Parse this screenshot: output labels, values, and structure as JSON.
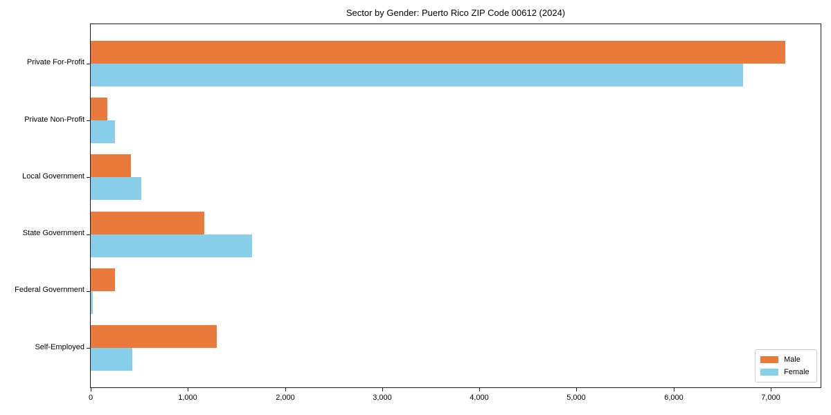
{
  "chart_data": {
    "type": "bar",
    "orientation": "horizontal",
    "title": "Sector by Gender: Puerto Rico ZIP Code 00612 (2024)",
    "categories": [
      "Private For-Profit",
      "Private Non-Profit",
      "Local Government",
      "State Government",
      "Federal Government",
      "Self-Employed"
    ],
    "series": [
      {
        "name": "Male",
        "color": "#e97a3c",
        "values": [
          7150,
          170,
          410,
          1170,
          250,
          1300
        ]
      },
      {
        "name": "Female",
        "color": "#87ceeb",
        "values": [
          6720,
          250,
          520,
          1660,
          20,
          430
        ]
      }
    ],
    "xlim": [
      0,
      7515
    ],
    "xticks": [
      0,
      1000,
      2000,
      3000,
      4000,
      5000,
      6000,
      7000
    ],
    "xtick_labels": [
      "0",
      "1,000",
      "2,000",
      "3,000",
      "4,000",
      "5,000",
      "6,000",
      "7,000"
    ],
    "xlabel": "",
    "ylabel": "",
    "grid": false,
    "legend_position": "lower right",
    "axis_color": "#1a1a1a"
  }
}
